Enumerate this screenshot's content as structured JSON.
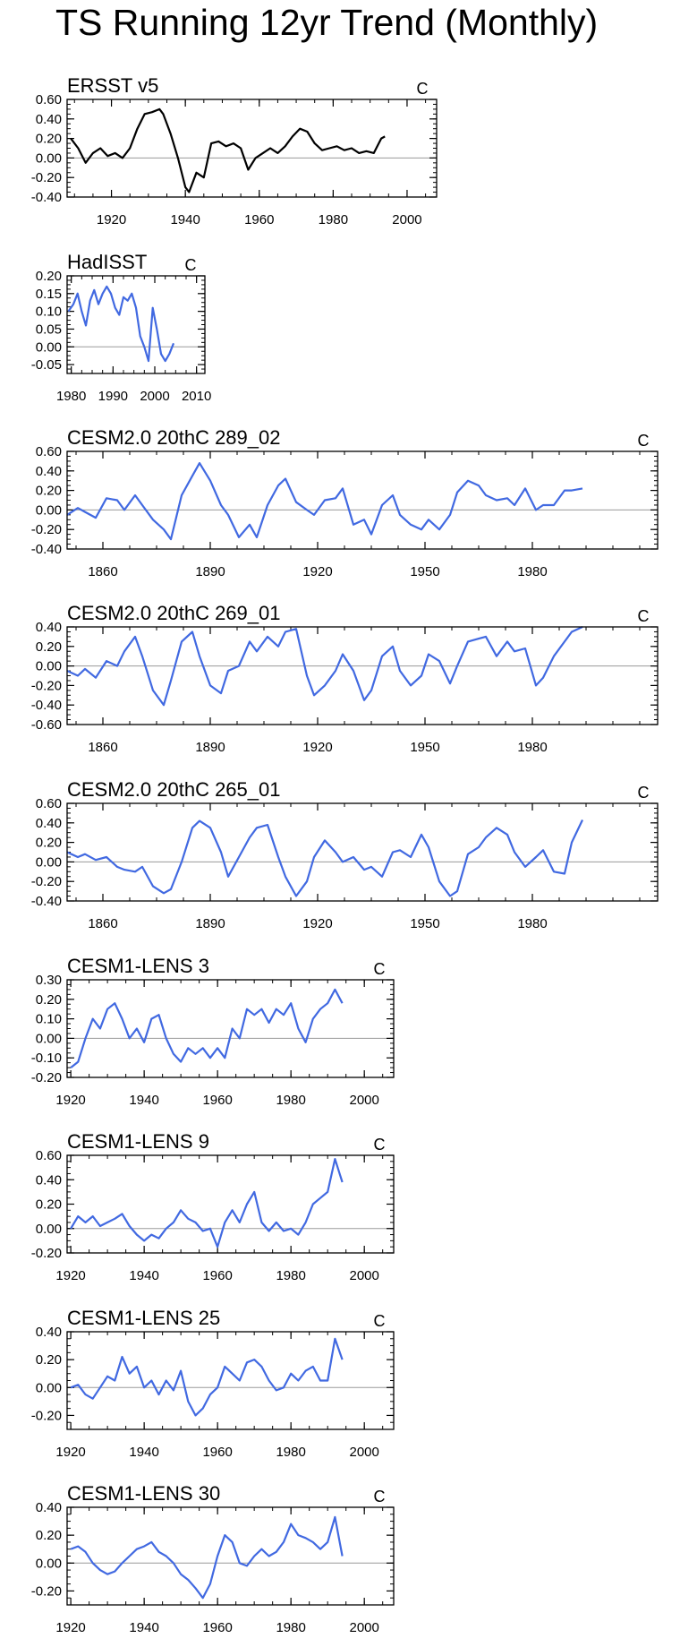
{
  "title": "TS Running 12yr Trend (Monthly)",
  "chart_data": [
    {
      "type": "line",
      "title": "ERSST v5",
      "units": "C",
      "xlim": [
        1908,
        2008
      ],
      "ylim": [
        -0.4,
        0.6
      ],
      "xticks": [
        1920,
        1940,
        1960,
        1980,
        2000
      ],
      "yticks": [
        -0.4,
        -0.2,
        0.0,
        0.2,
        0.4,
        0.6
      ],
      "ytick_labels": [
        "-0.40",
        "-0.20",
        "0.00",
        "0.20",
        "0.40",
        "0.60"
      ],
      "series": [
        {
          "color": "#000000",
          "x": [
            1909,
            1911,
            1913,
            1915,
            1917,
            1919,
            1921,
            1923,
            1925,
            1927,
            1929,
            1931,
            1933,
            1934,
            1936,
            1938,
            1940,
            1941,
            1943,
            1945,
            1947,
            1949,
            1951,
            1953,
            1955,
            1957,
            1959,
            1961,
            1963,
            1965,
            1967,
            1969,
            1971,
            1973,
            1975,
            1977,
            1979,
            1981,
            1983,
            1985,
            1987,
            1989,
            1991,
            1993,
            1994
          ],
          "y": [
            0.2,
            0.1,
            -0.05,
            0.05,
            0.1,
            0.02,
            0.05,
            0.0,
            0.1,
            0.3,
            0.45,
            0.47,
            0.5,
            0.45,
            0.25,
            0.0,
            -0.3,
            -0.35,
            -0.15,
            -0.2,
            0.15,
            0.17,
            0.12,
            0.15,
            0.1,
            -0.12,
            0.0,
            0.05,
            0.1,
            0.05,
            0.12,
            0.22,
            0.3,
            0.27,
            0.15,
            0.08,
            0.1,
            0.12,
            0.08,
            0.1,
            0.05,
            0.07,
            0.05,
            0.2,
            0.22
          ]
        }
      ]
    },
    {
      "type": "line",
      "title": "HadISST",
      "units": "C",
      "xlim": [
        1979,
        2012
      ],
      "ylim": [
        -0.075,
        0.2
      ],
      "xticks": [
        1980,
        1990,
        2000,
        2010
      ],
      "yticks": [
        -0.05,
        0.0,
        0.05,
        0.1,
        0.15,
        0.2
      ],
      "ytick_labels": [
        "-0.05",
        "0.00",
        "0.05",
        "0.10",
        "0.15",
        "0.20"
      ],
      "series": [
        {
          "color": "#4169e1",
          "x": [
            1979.3,
            1980.5,
            1981.5,
            1982.5,
            1983.5,
            1984.5,
            1985.5,
            1986.5,
            1987.5,
            1988.5,
            1989.5,
            1990.5,
            1991.5,
            1992.5,
            1993.5,
            1994.5,
            1995.5,
            1996.5,
            1997.5,
            1998.5,
            1999.5,
            2000.5,
            2001.5,
            2002.5,
            2003.5,
            2004.5
          ],
          "y": [
            0.1,
            0.12,
            0.15,
            0.1,
            0.06,
            0.13,
            0.16,
            0.12,
            0.15,
            0.17,
            0.15,
            0.11,
            0.09,
            0.14,
            0.13,
            0.15,
            0.11,
            0.03,
            0.0,
            -0.04,
            0.11,
            0.05,
            -0.02,
            -0.04,
            -0.02,
            0.01
          ]
        }
      ]
    },
    {
      "type": "line",
      "title": "CESM2.0 20thC 289_02",
      "units": "C",
      "xlim": [
        1850,
        2015
      ],
      "ylim": [
        -0.4,
        0.6
      ],
      "xticks": [
        1860,
        1890,
        1920,
        1950,
        1980
      ],
      "yticks": [
        -0.4,
        -0.2,
        0.0,
        0.2,
        0.4,
        0.6
      ],
      "ytick_labels": [
        "-0.40",
        "-0.20",
        "0.00",
        "0.20",
        "0.40",
        "0.60"
      ],
      "series": [
        {
          "color": "#4169e1",
          "x": [
            1850,
            1853,
            1855,
            1858,
            1861,
            1864,
            1866,
            1869,
            1871,
            1874,
            1877,
            1879,
            1882,
            1885,
            1887,
            1890,
            1893,
            1895,
            1898,
            1901,
            1903,
            1906,
            1909,
            1911,
            1914,
            1917,
            1919,
            1922,
            1925,
            1927,
            1930,
            1933,
            1935,
            1938,
            1941,
            1943,
            1946,
            1949,
            1951,
            1954,
            1957,
            1959,
            1962,
            1965,
            1967,
            1970,
            1973,
            1975,
            1978,
            1981,
            1983,
            1986,
            1989,
            1991,
            1994
          ],
          "y": [
            -0.05,
            0.02,
            -0.02,
            -0.08,
            0.12,
            0.1,
            0.0,
            0.15,
            0.05,
            -0.1,
            -0.2,
            -0.3,
            0.15,
            0.35,
            0.48,
            0.3,
            0.05,
            -0.05,
            -0.28,
            -0.15,
            -0.28,
            0.05,
            0.25,
            0.32,
            0.08,
            0.0,
            -0.05,
            0.1,
            0.12,
            0.22,
            -0.15,
            -0.1,
            -0.25,
            0.05,
            0.15,
            -0.05,
            -0.15,
            -0.2,
            -0.1,
            -0.2,
            -0.05,
            0.18,
            0.3,
            0.25,
            0.15,
            0.1,
            0.12,
            0.05,
            0.22,
            0.0,
            0.05,
            0.05,
            0.2,
            0.2,
            0.22
          ]
        }
      ]
    },
    {
      "type": "line",
      "title": "CESM2.0 20thC 269_01",
      "units": "C",
      "xlim": [
        1850,
        2015
      ],
      "ylim": [
        -0.6,
        0.4
      ],
      "xticks": [
        1860,
        1890,
        1920,
        1950,
        1980
      ],
      "yticks": [
        -0.6,
        -0.4,
        -0.2,
        0.0,
        0.2,
        0.4
      ],
      "ytick_labels": [
        "-0.60",
        "-0.40",
        "-0.20",
        "0.00",
        "0.20",
        "0.40"
      ],
      "series": [
        {
          "color": "#4169e1",
          "x": [
            1850,
            1853,
            1855,
            1858,
            1861,
            1864,
            1866,
            1869,
            1871,
            1874,
            1877,
            1879,
            1882,
            1885,
            1887,
            1890,
            1893,
            1895,
            1898,
            1901,
            1903,
            1906,
            1909,
            1911,
            1914,
            1917,
            1919,
            1922,
            1925,
            1927,
            1930,
            1933,
            1935,
            1938,
            1941,
            1943,
            1946,
            1949,
            1951,
            1954,
            1957,
            1959,
            1962,
            1965,
            1967,
            1970,
            1973,
            1975,
            1978,
            1981,
            1983,
            1986,
            1989,
            1991,
            1994
          ],
          "y": [
            -0.05,
            -0.1,
            -0.03,
            -0.12,
            0.05,
            0.0,
            0.15,
            0.3,
            0.1,
            -0.25,
            -0.4,
            -0.15,
            0.25,
            0.35,
            0.1,
            -0.2,
            -0.28,
            -0.05,
            0.0,
            0.25,
            0.15,
            0.3,
            0.2,
            0.35,
            0.38,
            -0.1,
            -0.3,
            -0.2,
            -0.05,
            0.12,
            -0.05,
            -0.35,
            -0.25,
            0.1,
            0.2,
            -0.05,
            -0.2,
            -0.1,
            0.12,
            0.05,
            -0.18,
            0.0,
            0.25,
            0.28,
            0.3,
            0.1,
            0.25,
            0.15,
            0.18,
            -0.2,
            -0.12,
            0.1,
            0.25,
            0.35,
            0.4
          ]
        }
      ]
    },
    {
      "type": "line",
      "title": "CESM2.0 20thC 265_01",
      "units": "C",
      "xlim": [
        1850,
        2015
      ],
      "ylim": [
        -0.4,
        0.6
      ],
      "xticks": [
        1860,
        1890,
        1920,
        1950,
        1980
      ],
      "yticks": [
        -0.4,
        -0.2,
        0.0,
        0.2,
        0.4,
        0.6
      ],
      "ytick_labels": [
        "-0.40",
        "-0.20",
        "0.00",
        "0.20",
        "0.40",
        "0.60"
      ],
      "series": [
        {
          "color": "#4169e1",
          "x": [
            1850,
            1853,
            1855,
            1858,
            1861,
            1864,
            1866,
            1869,
            1871,
            1874,
            1877,
            1879,
            1882,
            1885,
            1887,
            1890,
            1893,
            1895,
            1898,
            1901,
            1903,
            1906,
            1909,
            1911,
            1914,
            1917,
            1919,
            1922,
            1925,
            1927,
            1930,
            1933,
            1935,
            1938,
            1941,
            1943,
            1946,
            1949,
            1951,
            1954,
            1957,
            1959,
            1962,
            1965,
            1967,
            1970,
            1973,
            1975,
            1978,
            1981,
            1983,
            1986,
            1989,
            1991,
            1994
          ],
          "y": [
            0.1,
            0.05,
            0.08,
            0.02,
            0.05,
            -0.05,
            -0.08,
            -0.1,
            -0.05,
            -0.25,
            -0.32,
            -0.28,
            0.0,
            0.35,
            0.42,
            0.35,
            0.1,
            -0.15,
            0.05,
            0.25,
            0.35,
            0.38,
            0.05,
            -0.15,
            -0.35,
            -0.2,
            0.05,
            0.22,
            0.1,
            0.0,
            0.05,
            -0.08,
            -0.05,
            -0.15,
            0.1,
            0.12,
            0.05,
            0.28,
            0.15,
            -0.2,
            -0.35,
            -0.3,
            0.08,
            0.15,
            0.25,
            0.35,
            0.28,
            0.1,
            -0.05,
            0.05,
            0.12,
            -0.1,
            -0.12,
            0.2,
            0.43
          ]
        }
      ]
    },
    {
      "type": "line",
      "title": "CESM1-LENS 3",
      "units": "C",
      "xlim": [
        1919,
        2008
      ],
      "ylim": [
        -0.2,
        0.3
      ],
      "xticks": [
        1920,
        1940,
        1960,
        1980,
        2000
      ],
      "yticks": [
        -0.2,
        -0.1,
        0.0,
        0.1,
        0.2,
        0.3
      ],
      "ytick_labels": [
        "-0.20",
        "-0.10",
        "0.00",
        "0.10",
        "0.20",
        "0.30"
      ],
      "series": [
        {
          "color": "#4169e1",
          "x": [
            1920,
            1922,
            1924,
            1926,
            1928,
            1930,
            1932,
            1934,
            1936,
            1938,
            1940,
            1942,
            1944,
            1946,
            1948,
            1950,
            1952,
            1954,
            1956,
            1958,
            1960,
            1962,
            1964,
            1966,
            1968,
            1970,
            1972,
            1974,
            1976,
            1978,
            1980,
            1982,
            1984,
            1986,
            1988,
            1990,
            1992,
            1994
          ],
          "y": [
            -0.15,
            -0.12,
            0.0,
            0.1,
            0.05,
            0.15,
            0.18,
            0.1,
            0.0,
            0.05,
            -0.02,
            0.1,
            0.12,
            0.0,
            -0.08,
            -0.12,
            -0.05,
            -0.08,
            -0.05,
            -0.1,
            -0.05,
            -0.1,
            0.05,
            0.0,
            0.15,
            0.12,
            0.15,
            0.08,
            0.15,
            0.12,
            0.18,
            0.05,
            -0.02,
            0.1,
            0.15,
            0.18,
            0.25,
            0.18
          ]
        }
      ]
    },
    {
      "type": "line",
      "title": "CESM1-LENS 9",
      "units": "C",
      "xlim": [
        1919,
        2008
      ],
      "ylim": [
        -0.2,
        0.6
      ],
      "xticks": [
        1920,
        1940,
        1960,
        1980,
        2000
      ],
      "yticks": [
        -0.2,
        0.0,
        0.2,
        0.4,
        0.6
      ],
      "ytick_labels": [
        "-0.20",
        "0.00",
        "0.20",
        "0.40",
        "0.60"
      ],
      "series": [
        {
          "color": "#4169e1",
          "x": [
            1920,
            1922,
            1924,
            1926,
            1928,
            1930,
            1932,
            1934,
            1936,
            1938,
            1940,
            1942,
            1944,
            1946,
            1948,
            1950,
            1952,
            1954,
            1956,
            1958,
            1960,
            1962,
            1964,
            1966,
            1968,
            1970,
            1972,
            1974,
            1976,
            1978,
            1980,
            1982,
            1984,
            1986,
            1988,
            1990,
            1992,
            1994
          ],
          "y": [
            0.0,
            0.1,
            0.05,
            0.1,
            0.02,
            0.05,
            0.08,
            0.12,
            0.02,
            -0.05,
            -0.1,
            -0.05,
            -0.08,
            0.0,
            0.05,
            0.15,
            0.08,
            0.05,
            -0.02,
            0.0,
            -0.15,
            0.05,
            0.15,
            0.05,
            0.2,
            0.3,
            0.05,
            -0.02,
            0.05,
            -0.02,
            0.0,
            -0.05,
            0.05,
            0.2,
            0.25,
            0.3,
            0.57,
            0.38
          ]
        }
      ]
    },
    {
      "type": "line",
      "title": "CESM1-LENS 25",
      "units": "C",
      "xlim": [
        1919,
        2008
      ],
      "ylim": [
        -0.3,
        0.4
      ],
      "xticks": [
        1920,
        1940,
        1960,
        1980,
        2000
      ],
      "yticks": [
        -0.2,
        0.0,
        0.2,
        0.4
      ],
      "ytick_labels": [
        "-0.20",
        "0.00",
        "0.20",
        "0.40"
      ],
      "series": [
        {
          "color": "#4169e1",
          "x": [
            1920,
            1922,
            1924,
            1926,
            1928,
            1930,
            1932,
            1934,
            1936,
            1938,
            1940,
            1942,
            1944,
            1946,
            1948,
            1950,
            1952,
            1954,
            1956,
            1958,
            1960,
            1962,
            1964,
            1966,
            1968,
            1970,
            1972,
            1974,
            1976,
            1978,
            1980,
            1982,
            1984,
            1986,
            1988,
            1990,
            1992,
            1994
          ],
          "y": [
            0.0,
            0.02,
            -0.05,
            -0.08,
            0.0,
            0.08,
            0.05,
            0.22,
            0.1,
            0.15,
            0.0,
            0.05,
            -0.05,
            0.05,
            -0.02,
            0.12,
            -0.1,
            -0.2,
            -0.15,
            -0.05,
            0.0,
            0.15,
            0.1,
            0.05,
            0.18,
            0.2,
            0.15,
            0.05,
            -0.02,
            0.0,
            0.1,
            0.05,
            0.12,
            0.15,
            0.05,
            0.05,
            0.35,
            0.2
          ]
        }
      ]
    },
    {
      "type": "line",
      "title": "CESM1-LENS 30",
      "units": "C",
      "xlim": [
        1919,
        2008
      ],
      "ylim": [
        -0.3,
        0.4
      ],
      "xticks": [
        1920,
        1940,
        1960,
        1980,
        2000
      ],
      "yticks": [
        -0.2,
        0.0,
        0.2,
        0.4
      ],
      "ytick_labels": [
        "-0.20",
        "0.00",
        "0.20",
        "0.40"
      ],
      "series": [
        {
          "color": "#4169e1",
          "x": [
            1920,
            1922,
            1924,
            1926,
            1928,
            1930,
            1932,
            1934,
            1936,
            1938,
            1940,
            1942,
            1944,
            1946,
            1948,
            1950,
            1952,
            1954,
            1956,
            1958,
            1960,
            1962,
            1964,
            1966,
            1968,
            1970,
            1972,
            1974,
            1976,
            1978,
            1980,
            1982,
            1984,
            1986,
            1988,
            1990,
            1992,
            1994
          ],
          "y": [
            0.1,
            0.12,
            0.08,
            0.0,
            -0.05,
            -0.08,
            -0.06,
            0.0,
            0.05,
            0.1,
            0.12,
            0.15,
            0.08,
            0.05,
            0.0,
            -0.08,
            -0.12,
            -0.18,
            -0.25,
            -0.15,
            0.05,
            0.2,
            0.15,
            0.0,
            -0.02,
            0.05,
            0.1,
            0.05,
            0.08,
            0.15,
            0.28,
            0.2,
            0.18,
            0.15,
            0.1,
            0.15,
            0.33,
            0.05
          ]
        }
      ]
    }
  ]
}
